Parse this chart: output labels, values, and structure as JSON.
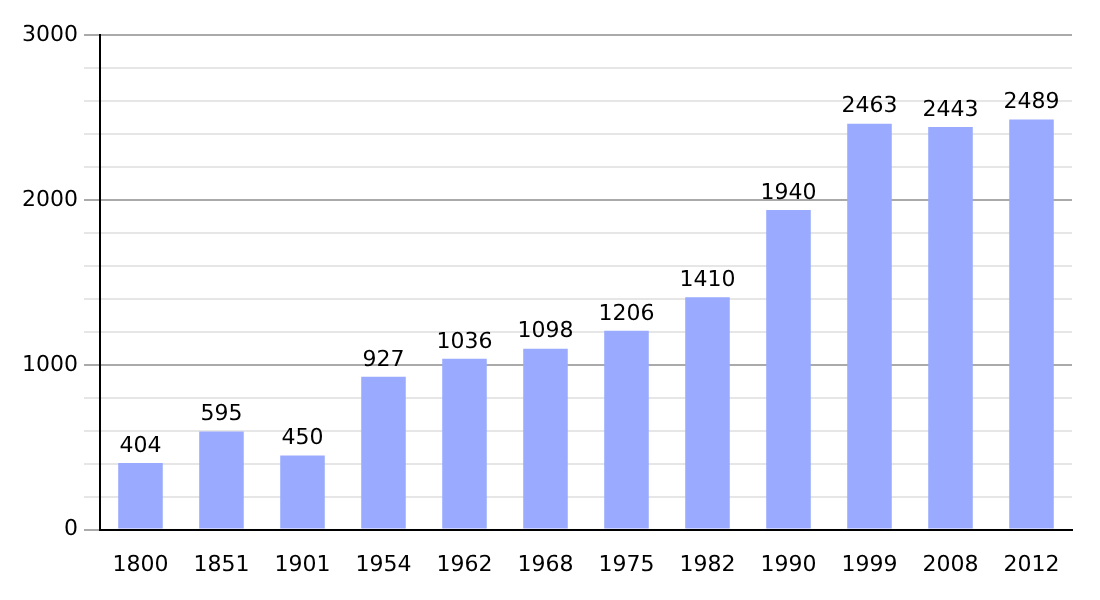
{
  "chart_data": {
    "type": "bar",
    "categories": [
      "1800",
      "1851",
      "1901",
      "1954",
      "1962",
      "1968",
      "1975",
      "1982",
      "1990",
      "1999",
      "2008",
      "2012"
    ],
    "values": [
      404,
      595,
      450,
      927,
      1036,
      1098,
      1206,
      1410,
      1940,
      2463,
      2443,
      2489
    ],
    "color": "#99aaff",
    "ylim": [
      0,
      3000
    ],
    "yticks": [
      0,
      {
        "value": 200,
        "label": null
      },
      {
        "value": 400,
        "label": null
      },
      {
        "value": 600,
        "label": null
      },
      {
        "value": 800,
        "label": null
      },
      1000,
      {
        "value": 1200,
        "label": null
      },
      {
        "value": 1400,
        "label": null
      },
      {
        "value": 1600,
        "label": null
      },
      {
        "value": 1800,
        "label": null
      },
      2000,
      {
        "value": 2200,
        "label": null
      },
      {
        "value": 2400,
        "label": null
      },
      {
        "value": 2600,
        "label": null
      },
      {
        "value": 2800,
        "label": null
      },
      3000
    ],
    "grid": "y",
    "data_labels": true
  }
}
